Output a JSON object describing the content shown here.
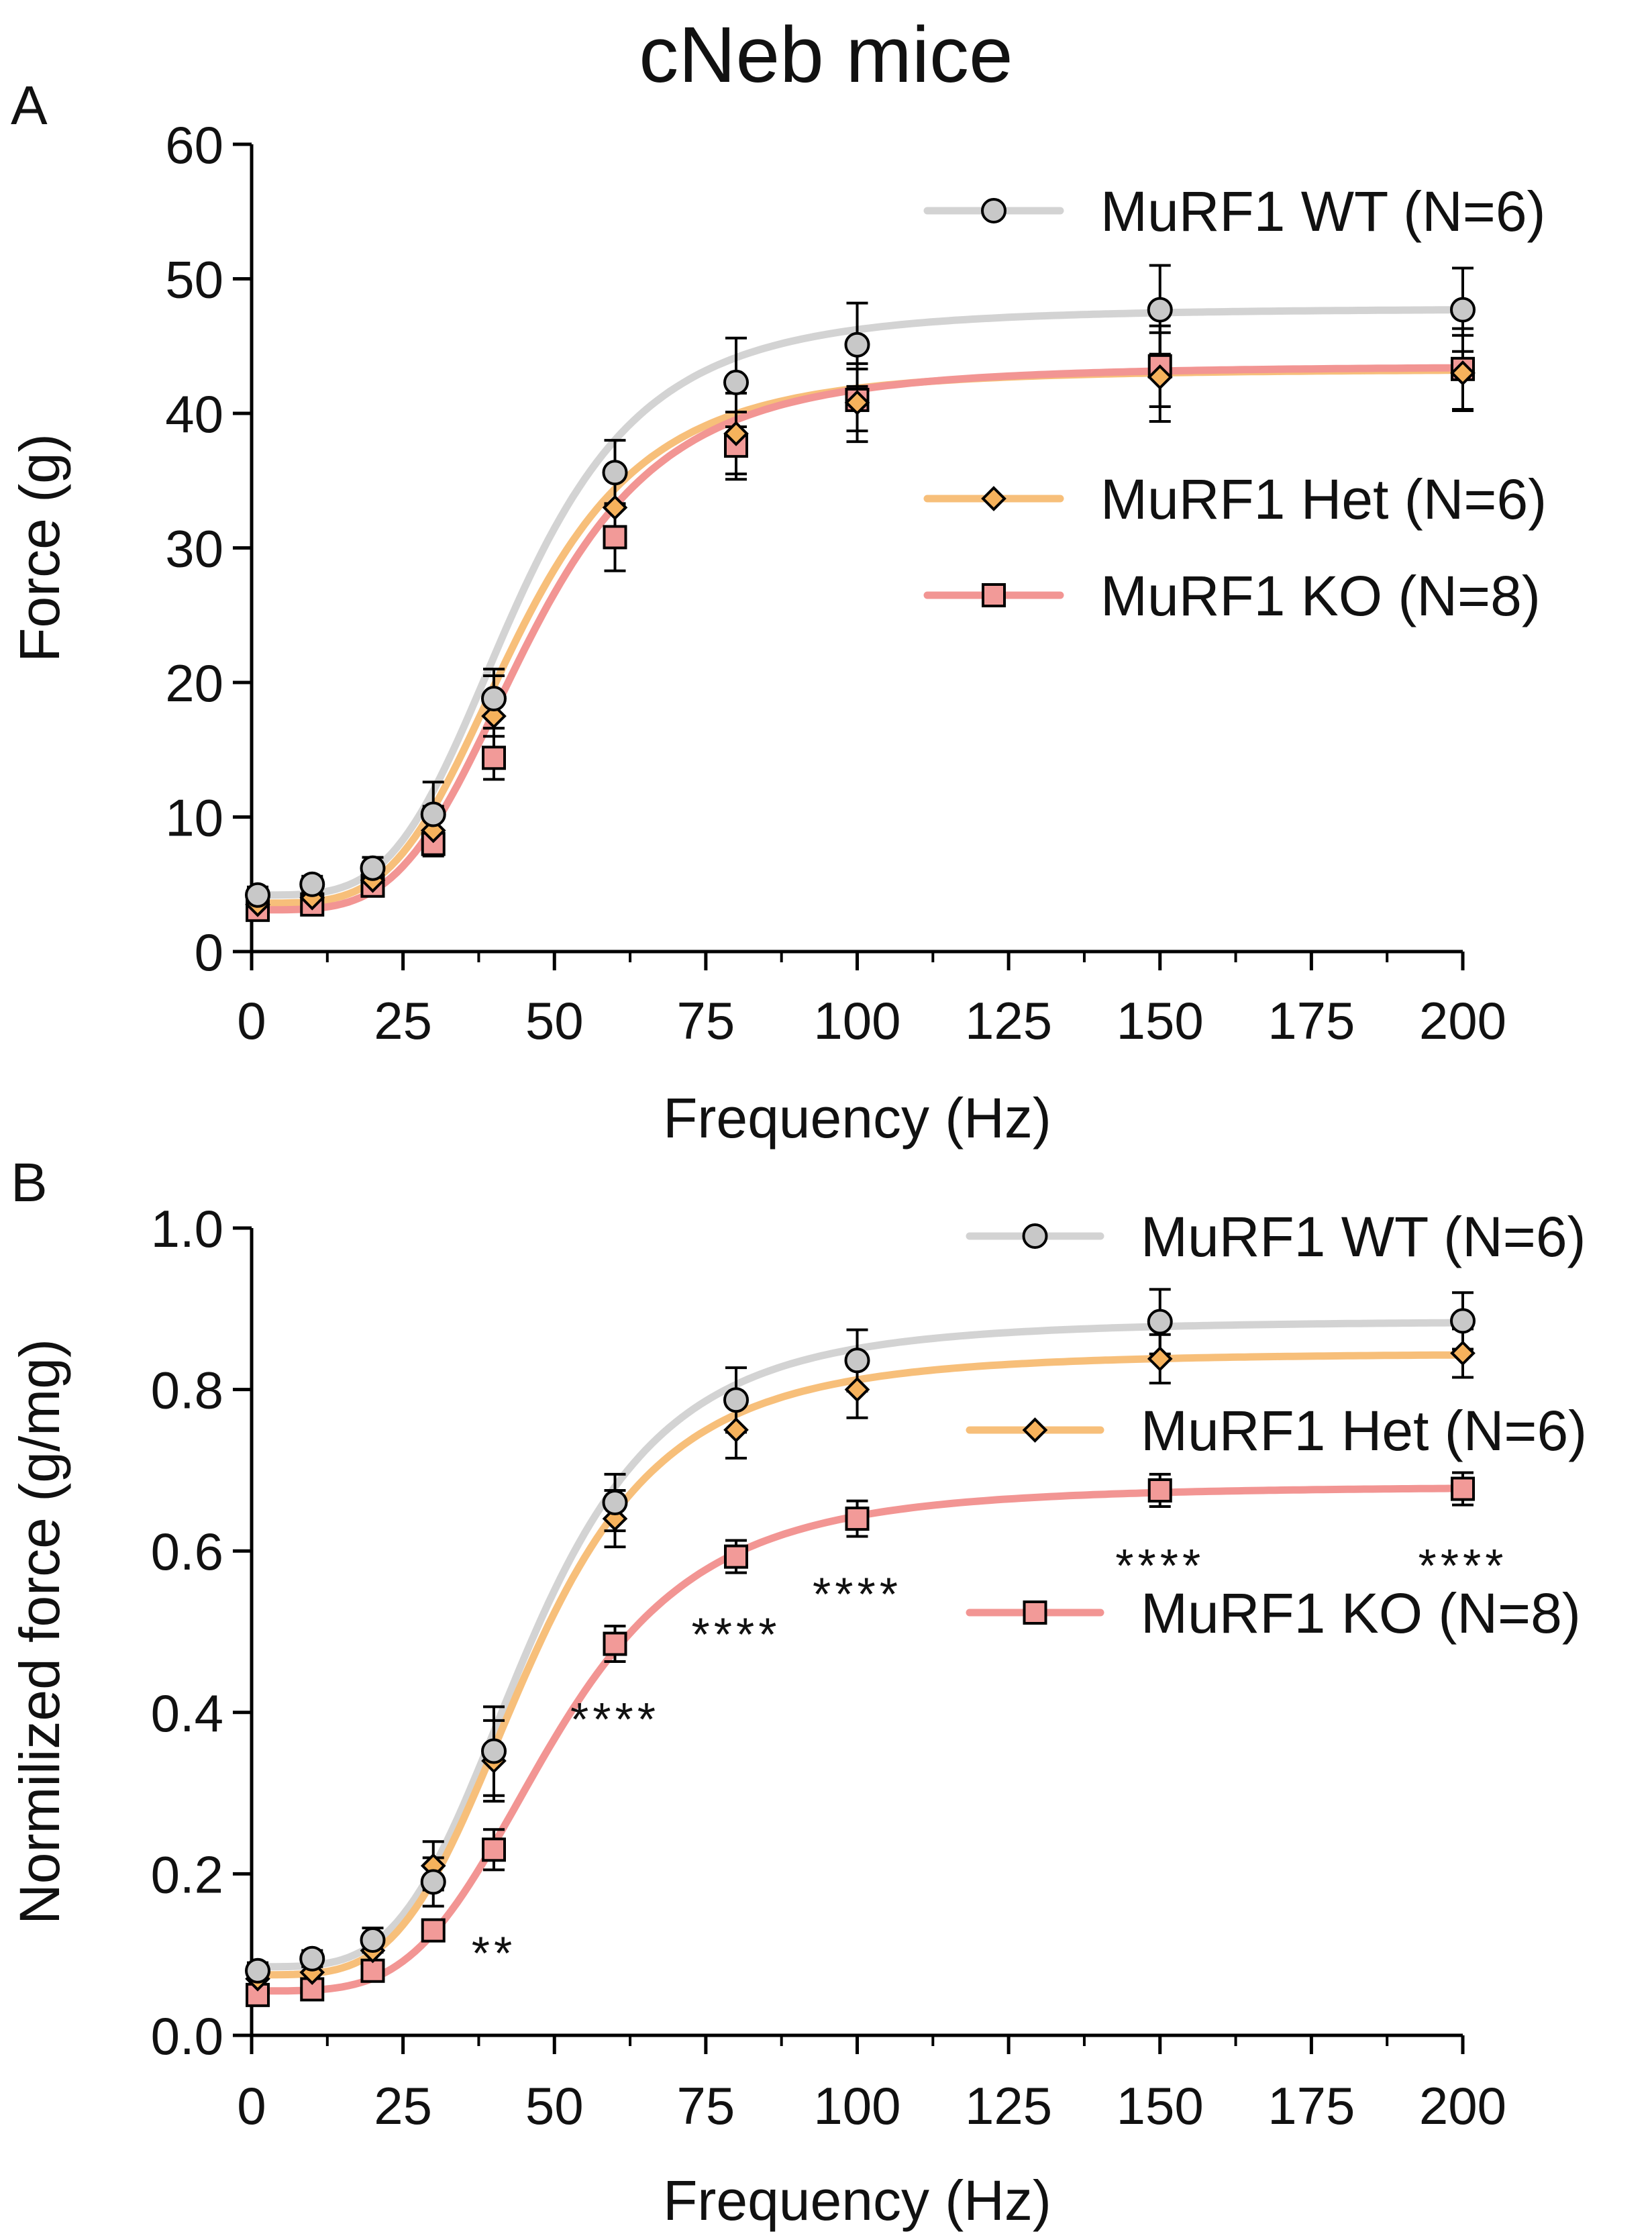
{
  "figure_title": "cNeb mice",
  "colors": {
    "wt_line": "#d3d3d3",
    "wt_marker": "#c8c8c8",
    "het_line": "#f7bf7a",
    "het_marker": "#f6b25c",
    "ko_line": "#f29593",
    "ko_marker": "#f29a98",
    "axis": "#000000"
  },
  "chart_data": [
    {
      "panel_label": "A",
      "type": "line",
      "xlabel": "Frequency (Hz)",
      "ylabel": "Force (g)",
      "xlim": [
        0,
        200
      ],
      "ylim": [
        0,
        60
      ],
      "xticks": [
        0,
        25,
        50,
        75,
        100,
        125,
        150,
        175,
        200
      ],
      "xtick_labels": [
        "0",
        "25",
        "50",
        "75",
        "100",
        "125",
        "150",
        "175",
        "200"
      ],
      "yticks": [
        0,
        10,
        20,
        30,
        40,
        50,
        60
      ],
      "ytick_labels": [
        "0",
        "10",
        "20",
        "30",
        "40",
        "50",
        "60"
      ],
      "x": [
        1,
        10,
        20,
        30,
        40,
        60,
        80,
        100,
        150,
        200
      ],
      "series": [
        {
          "name": "MuRF1 WT (N=6)",
          "marker": "circle",
          "color_key": "wt",
          "values": [
            4.2,
            5.0,
            6.2,
            10.2,
            18.8,
            35.6,
            42.3,
            45.1,
            47.7,
            47.7
          ],
          "errors": [
            0.6,
            0.6,
            0.8,
            2.4,
            2.2,
            2.4,
            3.3,
            3.1,
            3.3,
            3.1
          ],
          "fit": {
            "bottom": 4.2,
            "top": 47.8,
            "ec50": 44,
            "hill": 4.0
          }
        },
        {
          "name": "MuRF1 Het (N=6)",
          "marker": "diamond",
          "color_key": "het",
          "values": [
            3.5,
            4.0,
            5.3,
            9.0,
            17.5,
            33.0,
            38.5,
            40.8,
            42.7,
            43.0
          ],
          "errors": [
            0.5,
            0.5,
            0.7,
            1.8,
            3.0,
            3.0,
            3.0,
            2.9,
            3.3,
            2.8
          ],
          "fit": {
            "bottom": 3.6,
            "top": 43.3,
            "ec50": 44,
            "hill": 4.0
          }
        },
        {
          "name": "MuRF1 KO (N=8)",
          "marker": "square",
          "color_key": "ko",
          "values": [
            3.1,
            3.5,
            4.9,
            8.0,
            14.4,
            30.8,
            37.6,
            41.0,
            43.5,
            43.3
          ],
          "errors": [
            0.5,
            0.5,
            0.7,
            0.9,
            1.6,
            2.5,
            2.5,
            2.3,
            3.0,
            3.0
          ],
          "fit": {
            "bottom": 3.1,
            "top": 43.5,
            "ec50": 46,
            "hill": 4.0
          }
        }
      ],
      "annotations": [],
      "legend": {
        "placement": "top-right",
        "split_after_first": true
      }
    },
    {
      "panel_label": "B",
      "type": "line",
      "xlabel": "Frequency (Hz)",
      "ylabel": "Normilized force (g/mg)",
      "xlim": [
        0,
        200
      ],
      "ylim": [
        0,
        1.0
      ],
      "xticks": [
        0,
        25,
        50,
        75,
        100,
        125,
        150,
        175,
        200
      ],
      "xtick_labels": [
        "0",
        "25",
        "50",
        "75",
        "100",
        "125",
        "150",
        "175",
        "200"
      ],
      "yticks": [
        0,
        0.2,
        0.4,
        0.6,
        0.8,
        1.0
      ],
      "ytick_labels": [
        "0.0",
        "0.2",
        "0.4",
        "0.6",
        "0.8",
        "1.0"
      ],
      "x": [
        1,
        10,
        20,
        30,
        40,
        60,
        80,
        100,
        150,
        200
      ],
      "series": [
        {
          "name": "MuRF1 WT (N=6)",
          "marker": "circle",
          "color_key": "wt",
          "values": [
            0.08,
            0.095,
            0.118,
            0.19,
            0.352,
            0.66,
            0.787,
            0.836,
            0.884,
            0.885
          ],
          "errors": [
            0.01,
            0.01,
            0.015,
            0.03,
            0.055,
            0.035,
            0.04,
            0.038,
            0.04,
            0.035
          ],
          "fit": {
            "bottom": 0.085,
            "top": 0.885,
            "ec50": 46,
            "hill": 4.0
          }
        },
        {
          "name": "MuRF1 Het (N=6)",
          "marker": "diamond",
          "color_key": "het",
          "values": [
            0.07,
            0.078,
            0.105,
            0.21,
            0.34,
            0.64,
            0.75,
            0.8,
            0.838,
            0.845
          ],
          "errors": [
            0.01,
            0.01,
            0.015,
            0.03,
            0.05,
            0.035,
            0.035,
            0.035,
            0.03,
            0.03
          ],
          "fit": {
            "bottom": 0.075,
            "top": 0.845,
            "ec50": 46,
            "hill": 4.0
          }
        },
        {
          "name": "MuRF1 KO (N=8)",
          "marker": "square",
          "color_key": "ko",
          "values": [
            0.05,
            0.057,
            0.08,
            0.13,
            0.23,
            0.485,
            0.593,
            0.64,
            0.675,
            0.677
          ],
          "errors": [
            0.01,
            0.01,
            0.01,
            0.012,
            0.025,
            0.022,
            0.02,
            0.022,
            0.02,
            0.02
          ],
          "fit": {
            "bottom": 0.055,
            "top": 0.68,
            "ec50": 50,
            "hill": 4.0
          }
        }
      ],
      "annotations": [
        {
          "text": "**",
          "x": 40,
          "y": 0.11
        },
        {
          "text": "****",
          "x": 60,
          "y": 0.4
        },
        {
          "text": "****",
          "x": 80,
          "y": 0.505
        },
        {
          "text": "****",
          "x": 100,
          "y": 0.555
        },
        {
          "text": "****",
          "x": 150,
          "y": 0.59
        },
        {
          "text": "****",
          "x": 200,
          "y": 0.59
        }
      ],
      "legend": {
        "placement": "top-right",
        "split_after_first": false
      }
    }
  ]
}
